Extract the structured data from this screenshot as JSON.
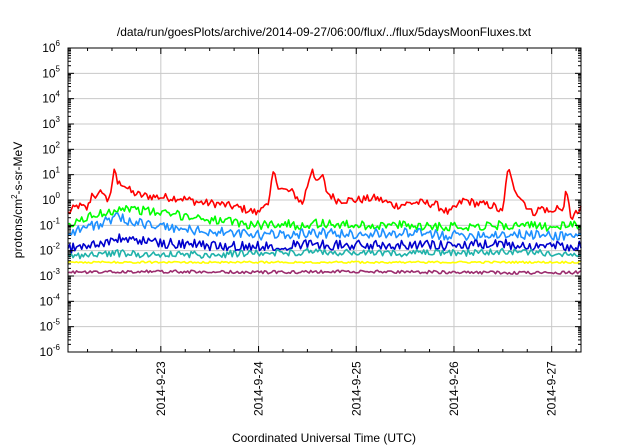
{
  "chart_data": {
    "type": "line",
    "title": "/data/run/goesPlots/archive/2014-09-27/06:00/flux/../flux/5daysMoonFluxes.txt",
    "xlabel": "Coordinated Universal Time (UTC)",
    "ylabel": "protons/cm2-s-sr-MeV",
    "ylabel_parts": {
      "before": "protons/cm",
      "sup": "2",
      "after": "-s-sr-MeV"
    },
    "yscale": "log",
    "ylim_exponents": [
      -6,
      6
    ],
    "y_tick_labels": [
      {
        "exp": -6,
        "base": "10",
        "sup": "-6"
      },
      {
        "exp": -5,
        "base": "10",
        "sup": "-5"
      },
      {
        "exp": -4,
        "base": "10",
        "sup": "-4"
      },
      {
        "exp": -3,
        "base": "10",
        "sup": "-3"
      },
      {
        "exp": -2,
        "base": "10",
        "sup": "-2"
      },
      {
        "exp": -1,
        "base": "10",
        "sup": "-1"
      },
      {
        "exp": 0,
        "base": "10",
        "sup": "0"
      },
      {
        "exp": 1,
        "base": "10",
        "sup": "1"
      },
      {
        "exp": 2,
        "base": "10",
        "sup": "2"
      },
      {
        "exp": 3,
        "base": "10",
        "sup": "3"
      },
      {
        "exp": 4,
        "base": "10",
        "sup": "4"
      },
      {
        "exp": 5,
        "base": "10",
        "sup": "5"
      },
      {
        "exp": 6,
        "base": "10",
        "sup": "6"
      }
    ],
    "x_day_range": [
      22.05,
      27.3
    ],
    "x_ticks": [
      {
        "day": 23,
        "label": "2014-9-23"
      },
      {
        "day": 24,
        "label": "2014-9-24"
      },
      {
        "day": 25,
        "label": "2014-9-25"
      },
      {
        "day": 26,
        "label": "2014-9-26"
      },
      {
        "day": 27,
        "label": "2014-9-27"
      }
    ],
    "grid": true,
    "legend": "none",
    "series": [
      {
        "color": "#ff0000",
        "noise": 0.16,
        "points": [
          [
            22.05,
            0.3
          ],
          [
            22.15,
            0.6
          ],
          [
            22.25,
            0.45
          ],
          [
            22.3,
            2.0
          ],
          [
            22.35,
            1.2
          ],
          [
            22.4,
            2.5
          ],
          [
            22.45,
            0.9
          ],
          [
            22.5,
            3.0
          ],
          [
            22.53,
            20
          ],
          [
            22.56,
            4
          ],
          [
            22.6,
            5
          ],
          [
            22.7,
            2.0
          ],
          [
            22.8,
            1.5
          ],
          [
            23.0,
            1.3
          ],
          [
            23.2,
            1.2
          ],
          [
            23.4,
            0.8
          ],
          [
            23.6,
            0.7
          ],
          [
            23.8,
            0.5
          ],
          [
            24.0,
            0.3
          ],
          [
            24.05,
            0.8
          ],
          [
            24.1,
            0.5
          ],
          [
            24.15,
            12
          ],
          [
            24.2,
            4
          ],
          [
            24.25,
            2.5
          ],
          [
            24.35,
            2.0
          ],
          [
            24.45,
            0.7
          ],
          [
            24.55,
            20
          ],
          [
            24.6,
            4
          ],
          [
            24.65,
            10
          ],
          [
            24.7,
            2.0
          ],
          [
            24.8,
            1.0
          ],
          [
            25.0,
            1.0
          ],
          [
            25.2,
            1.2
          ],
          [
            25.4,
            0.6
          ],
          [
            25.6,
            0.8
          ],
          [
            25.8,
            0.7
          ],
          [
            25.95,
            0.3
          ],
          [
            26.1,
            1.0
          ],
          [
            26.25,
            0.7
          ],
          [
            26.4,
            0.6
          ],
          [
            26.5,
            0.3
          ],
          [
            26.55,
            20
          ],
          [
            26.6,
            4
          ],
          [
            26.7,
            1.0
          ],
          [
            26.8,
            0.3
          ],
          [
            26.9,
            0.5
          ],
          [
            27.0,
            0.3
          ],
          [
            27.05,
            0.6
          ],
          [
            27.1,
            0.3
          ],
          [
            27.15,
            2.0
          ],
          [
            27.2,
            0.2
          ],
          [
            27.3,
            0.4
          ]
        ]
      },
      {
        "color": "#00ff00",
        "noise": 0.18,
        "points": [
          [
            22.05,
            0.08
          ],
          [
            22.2,
            0.18
          ],
          [
            22.4,
            0.3
          ],
          [
            22.6,
            0.5
          ],
          [
            22.8,
            0.4
          ],
          [
            23.0,
            0.3
          ],
          [
            23.2,
            0.25
          ],
          [
            23.4,
            0.2
          ],
          [
            23.6,
            0.15
          ],
          [
            23.8,
            0.12
          ],
          [
            24.0,
            0.1
          ],
          [
            24.2,
            0.12
          ],
          [
            24.4,
            0.1
          ],
          [
            24.6,
            0.12
          ],
          [
            25.0,
            0.1
          ],
          [
            25.5,
            0.1
          ],
          [
            26.0,
            0.09
          ],
          [
            26.5,
            0.1
          ],
          [
            27.0,
            0.09
          ],
          [
            27.3,
            0.1
          ]
        ]
      },
      {
        "color": "#1e90ff",
        "noise": 0.2,
        "points": [
          [
            22.05,
            0.05
          ],
          [
            22.2,
            0.08
          ],
          [
            22.4,
            0.12
          ],
          [
            22.55,
            0.2
          ],
          [
            22.7,
            0.15
          ],
          [
            22.9,
            0.1
          ],
          [
            23.1,
            0.08
          ],
          [
            23.4,
            0.06
          ],
          [
            23.7,
            0.05
          ],
          [
            24.0,
            0.04
          ],
          [
            24.5,
            0.05
          ],
          [
            25.0,
            0.045
          ],
          [
            25.5,
            0.05
          ],
          [
            26.0,
            0.04
          ],
          [
            26.5,
            0.045
          ],
          [
            27.0,
            0.04
          ],
          [
            27.3,
            0.04
          ]
        ]
      },
      {
        "color": "#0000cd",
        "noise": 0.2,
        "points": [
          [
            22.05,
            0.012
          ],
          [
            22.2,
            0.015
          ],
          [
            22.4,
            0.02
          ],
          [
            22.6,
            0.03
          ],
          [
            22.8,
            0.025
          ],
          [
            23.0,
            0.02
          ],
          [
            23.3,
            0.018
          ],
          [
            23.6,
            0.015
          ],
          [
            24.0,
            0.015
          ],
          [
            24.5,
            0.018
          ],
          [
            25.0,
            0.016
          ],
          [
            25.5,
            0.018
          ],
          [
            26.0,
            0.015
          ],
          [
            26.5,
            0.018
          ],
          [
            27.0,
            0.015
          ],
          [
            27.3,
            0.016
          ]
        ]
      },
      {
        "color": "#20b2aa",
        "noise": 0.14,
        "points": [
          [
            22.05,
            0.006
          ],
          [
            22.5,
            0.008
          ],
          [
            23.0,
            0.007
          ],
          [
            23.5,
            0.007
          ],
          [
            24.0,
            0.008
          ],
          [
            24.5,
            0.009
          ],
          [
            25.0,
            0.008
          ],
          [
            25.5,
            0.008
          ],
          [
            26.0,
            0.008
          ],
          [
            26.5,
            0.009
          ],
          [
            27.0,
            0.008
          ],
          [
            27.3,
            0.008
          ]
        ]
      },
      {
        "color": "#ffff00",
        "noise": 0.04,
        "points": [
          [
            22.05,
            0.0035
          ],
          [
            27.3,
            0.0035
          ]
        ]
      },
      {
        "color": "#9b2d6e",
        "noise": 0.06,
        "points": [
          [
            22.05,
            0.0014
          ],
          [
            23.0,
            0.0015
          ],
          [
            24.0,
            0.0014
          ],
          [
            25.0,
            0.0015
          ],
          [
            26.0,
            0.0014
          ],
          [
            27.0,
            0.0013
          ],
          [
            27.3,
            0.0014
          ]
        ]
      }
    ]
  }
}
